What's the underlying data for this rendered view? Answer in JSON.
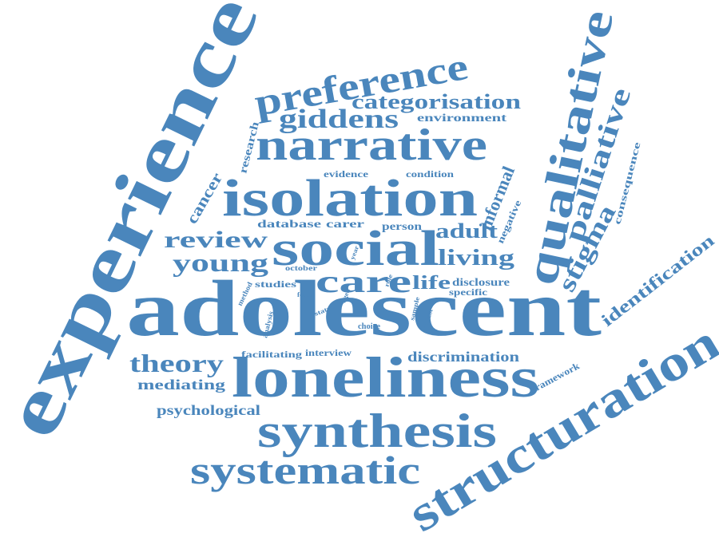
{
  "color": "#4a86bc",
  "words": [
    "adolescent",
    "experience",
    "structuration",
    "loneliness",
    "social",
    "isolation",
    "narrative",
    "synthesis",
    "qualitative",
    "preference",
    "systematic",
    "palliative",
    "giddens",
    "categorisation",
    "care",
    "review",
    "young",
    "theory",
    "stigma",
    "identification",
    "living",
    "adult",
    "informal",
    "cancer",
    "mediating",
    "psychological",
    "discrimination",
    "life",
    "environment",
    "research",
    "consequence",
    "negative",
    "database",
    "carer",
    "person",
    "evidence",
    "condition",
    "studies",
    "disclosure",
    "specific",
    "facilitating",
    "interview",
    "framework",
    "choice",
    "honest",
    "analysis",
    "october",
    "method",
    "focus",
    "status",
    "aged",
    "role",
    "sample",
    "year"
  ]
}
